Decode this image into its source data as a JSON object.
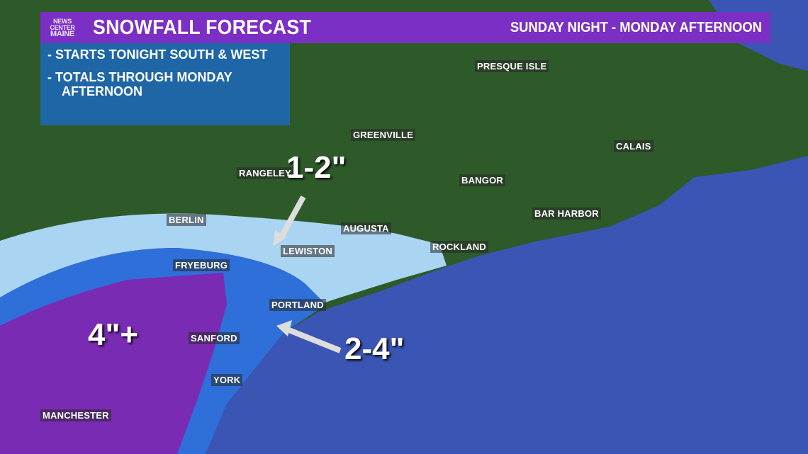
{
  "header": {
    "logo": [
      "NEWS",
      "CENTER",
      "MAINE"
    ],
    "title": "SNOWFALL FORECAST",
    "timeframe": "SUNDAY NIGHT - MONDAY AFTERNOON"
  },
  "info": [
    "- STARTS TONIGHT SOUTH & WEST",
    "- TOTALS THROUGH MONDAY AFTERNOON"
  ],
  "cities": [
    "PRESQUE ISLE",
    "GREENVILLE",
    "CALAIS",
    "RANGELEY",
    "BANGOR",
    "BERLIN",
    "AUGUSTA",
    "BAR HARBOR",
    "LEWISTON",
    "ROCKLAND",
    "FRYEBURG",
    "PORTLAND",
    "SANFORD",
    "YORK",
    "MANCHESTER"
  ],
  "amounts": {
    "light": "1-2\"",
    "medium": "2-4\"",
    "heavy": "4\"+"
  },
  "colors": {
    "header": "#7b2fc4",
    "info_box": "#1e66a6",
    "land": "#2e5a2a",
    "ocean": "#3a55b4",
    "snow_1_2": "#a9d4f2",
    "snow_2_4": "#2f6fd9",
    "snow_4_plus": "#7a2bb3"
  }
}
